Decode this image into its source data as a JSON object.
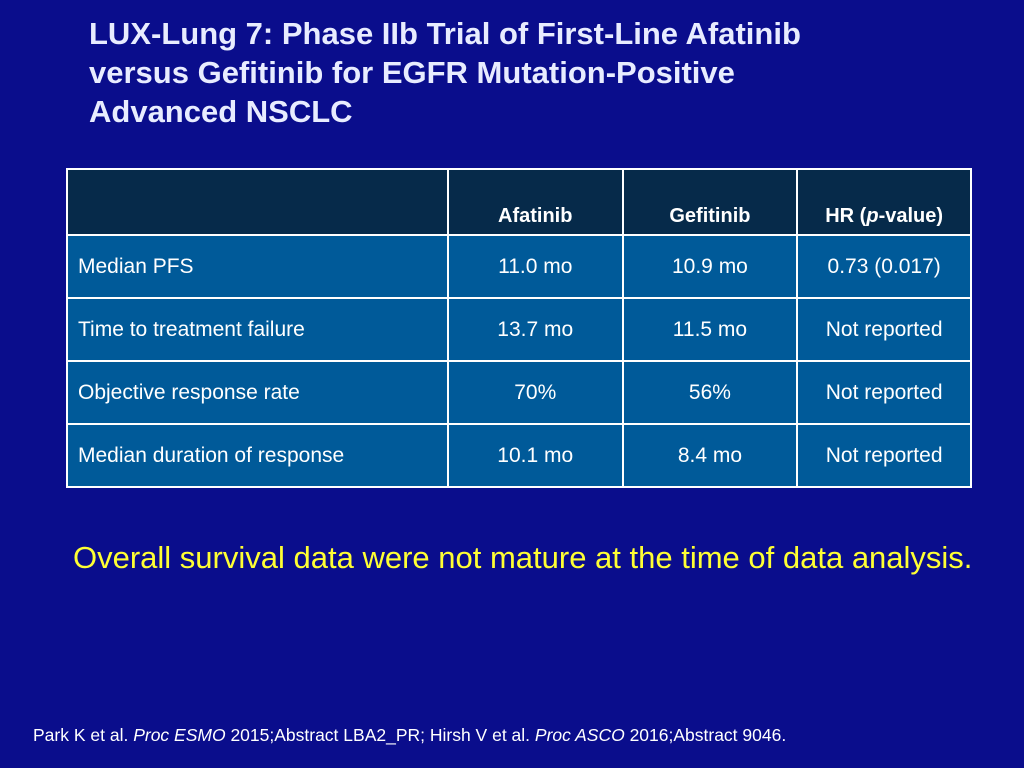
{
  "title": {
    "line1": "LUX-Lung 7: Phase IIb Trial of First-Line Afatinib",
    "line2": "versus Gefitinib for EGFR Mutation-Positive",
    "line3": "Advanced NSCLC"
  },
  "table": {
    "headers": {
      "col1": "",
      "col2": "Afatinib",
      "col3": "Gefitinib",
      "col4_prefix": "HR (",
      "col4_italic": "p",
      "col4_suffix": "-value)"
    },
    "rows": [
      {
        "label": "Median PFS",
        "afatinib": "11.0 mo",
        "gefitinib": "10.9 mo",
        "hr": "0.73 (0.017)"
      },
      {
        "label": "Time to treatment failure",
        "afatinib": "13.7 mo",
        "gefitinib": "11.5 mo",
        "hr": "Not reported"
      },
      {
        "label": "Objective response rate",
        "afatinib": "70%",
        "gefitinib": "56%",
        "hr": "Not reported"
      },
      {
        "label": "Median duration of response",
        "afatinib": "10.1 mo",
        "gefitinib": "8.4 mo",
        "hr": "Not reported"
      }
    ]
  },
  "note": "Overall survival data were not mature at the time of data analysis.",
  "citation": {
    "part1": "Park K et al. ",
    "journal1": "Proc ESMO",
    "part2": " 2015;Abstract LBA2_PR; Hirsh V et al. ",
    "journal2": "Proc ASCO",
    "part3": " 2016;Abstract 9046."
  },
  "colors": {
    "background": "#0a0d8c",
    "title": "#e8ecff",
    "header_fill": "#062a4a",
    "cell_fill": "#005a99",
    "note": "#ffff33"
  }
}
